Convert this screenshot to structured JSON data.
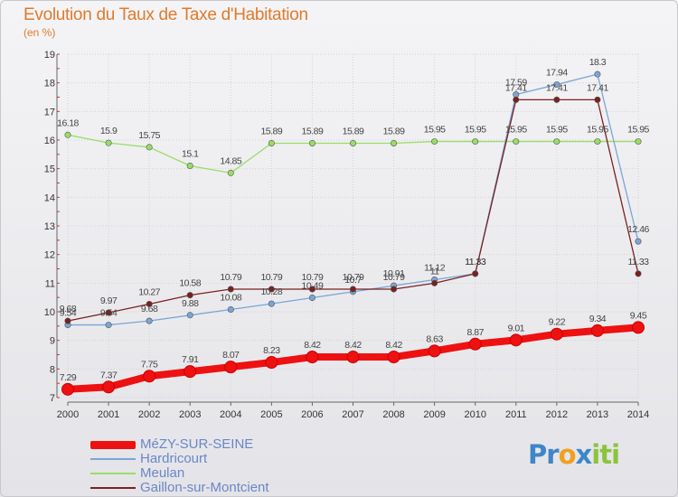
{
  "chart_data": {
    "type": "line",
    "title": "Evolution du Taux de Taxe d'Habitation",
    "unit_label": "(en %)",
    "x": [
      "2000",
      "2001",
      "2002",
      "2003",
      "2004",
      "2005",
      "2006",
      "2007",
      "2008",
      "2009",
      "2010",
      "2011",
      "2012",
      "2013",
      "2014"
    ],
    "ylim": [
      7,
      19
    ],
    "yticks": [
      7,
      8,
      9,
      10,
      11,
      12,
      13,
      14,
      15,
      16,
      17,
      18,
      19
    ],
    "grid": true,
    "legend_position": "bottom-left",
    "series": [
      {
        "name": "MéZY-SUR-SEINE",
        "color": "#ee1111",
        "values": [
          7.29,
          7.37,
          7.75,
          7.91,
          8.07,
          8.23,
          8.42,
          8.42,
          8.42,
          8.63,
          8.87,
          9.01,
          9.22,
          9.34,
          9.45
        ]
      },
      {
        "name": "Hardricourt",
        "color": "#7aa6d6",
        "values": [
          9.54,
          9.54,
          9.68,
          9.88,
          10.08,
          10.28,
          10.49,
          10.7,
          10.91,
          11.12,
          11.33,
          17.59,
          17.94,
          18.3,
          12.46
        ]
      },
      {
        "name": "Meulan",
        "color": "#99dd66",
        "values": [
          16.18,
          15.9,
          15.75,
          15.1,
          14.85,
          15.89,
          15.89,
          15.89,
          15.89,
          15.95,
          15.95,
          15.95,
          15.95,
          15.95,
          15.95
        ]
      },
      {
        "name": "Gaillon-sur-Montcient",
        "color": "#7a2020",
        "values": [
          9.68,
          9.97,
          10.27,
          10.58,
          10.79,
          10.79,
          10.79,
          10.79,
          10.79,
          11.0,
          11.33,
          17.41,
          17.41,
          17.41,
          11.33
        ]
      }
    ]
  },
  "logo": {
    "letters": [
      "P",
      "r",
      "o",
      "x",
      "i",
      "t",
      "i"
    ],
    "colors": [
      "#3e86c8",
      "#3e86c8",
      "#f0a020",
      "#3e86c8",
      "#8ac43f",
      "#8ac43f",
      "#8ac43f"
    ]
  }
}
